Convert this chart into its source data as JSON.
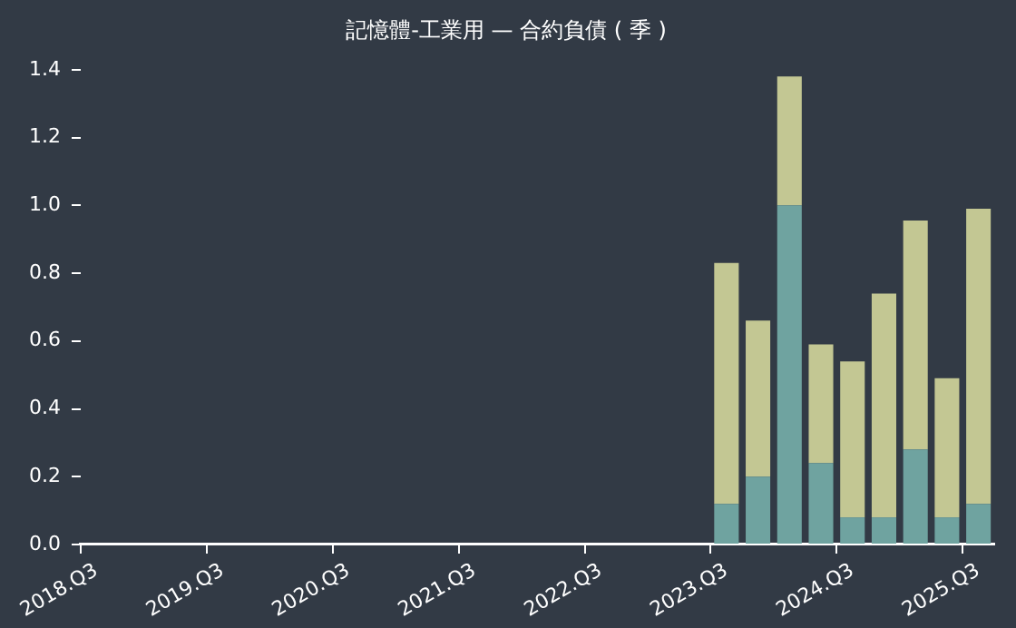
{
  "chart_data": {
    "type": "bar",
    "title": "記憶體-工業用 — 合約負債 ( 季 )",
    "stacked": true,
    "grid": false,
    "legend": false,
    "categories": [
      "2018.Q3",
      null,
      null,
      null,
      "2019.Q3",
      null,
      null,
      null,
      "2020.Q3",
      null,
      null,
      null,
      "2021.Q3",
      null,
      null,
      null,
      "2022.Q3",
      null,
      null,
      null,
      "2023.Q3",
      null,
      null,
      null,
      "2024.Q3",
      null,
      null,
      null,
      "2025.Q3"
    ],
    "series": [
      {
        "color": "#6fa3a0",
        "values": [
          null,
          null,
          null,
          null,
          null,
          null,
          null,
          null,
          null,
          null,
          null,
          null,
          null,
          null,
          null,
          null,
          null,
          null,
          null,
          null,
          0.12,
          0.2,
          1.0,
          0.24,
          0.08,
          0.08,
          0.28,
          0.08,
          0.12
        ]
      },
      {
        "color": "#c3c793",
        "values": [
          null,
          null,
          null,
          null,
          null,
          null,
          null,
          null,
          null,
          null,
          null,
          null,
          null,
          null,
          null,
          null,
          null,
          null,
          null,
          null,
          0.71,
          0.46,
          0.38,
          0.35,
          0.46,
          0.66,
          0.675,
          0.41,
          0.87
        ]
      }
    ],
    "ylim": [
      0,
      1.4
    ],
    "yticks": [
      {
        "value": 0,
        "label": "0.0"
      },
      0.2,
      0.4,
      0.6,
      0.8,
      {
        "value": 1,
        "label": "1.0"
      },
      1.2,
      1.4
    ]
  }
}
